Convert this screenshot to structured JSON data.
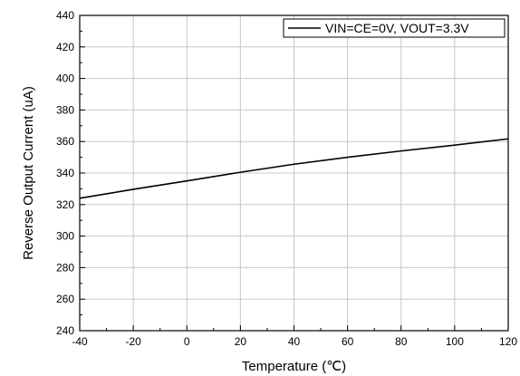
{
  "chart_data": {
    "type": "line",
    "title": "",
    "xlabel": "Temperature (℃)",
    "ylabel": "Reverse Output Current (uA)",
    "xlim": [
      -40,
      120
    ],
    "ylim": [
      240,
      440
    ],
    "xticks": [
      -40,
      -20,
      0,
      20,
      40,
      60,
      80,
      100,
      120
    ],
    "yticks": [
      240,
      260,
      280,
      300,
      320,
      340,
      360,
      380,
      400,
      420,
      440
    ],
    "grid": true,
    "legend_position": "top-right",
    "series": [
      {
        "name": "VIN=CE=0V, VOUT=3.3V",
        "color": "#000000",
        "x": [
          -40,
          -20,
          0,
          20,
          40,
          60,
          80,
          100,
          120
        ],
        "y": [
          324,
          329.7,
          335,
          340.5,
          345.6,
          350,
          354,
          357.7,
          361.7
        ]
      }
    ]
  }
}
